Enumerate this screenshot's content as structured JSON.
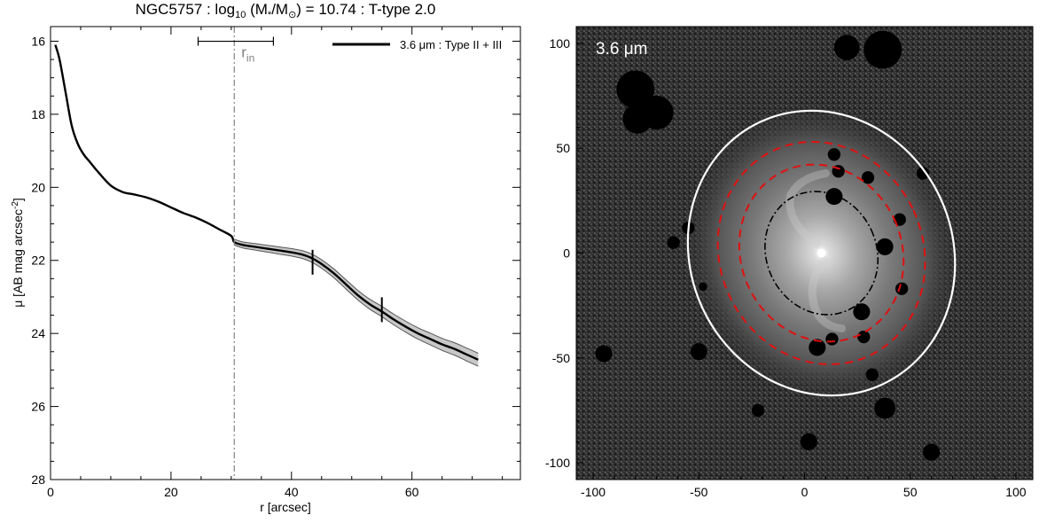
{
  "chart_data": [
    {
      "type": "line",
      "title_parts": {
        "galaxy": "NGC5757",
        "log_prefix": " : log",
        "log_sub": "10",
        "mass_open": " (M",
        "mass_sub": "*",
        "over": "/M",
        "sun": "⊙",
        "mass_value": ") = 10.74",
        "ttype": " : T-type 2.0"
      },
      "xlabel": "r [arcsec]",
      "ylabel_main": "μ [AB mag arcsec",
      "ylabel_sup": "-2",
      "ylabel_close": "]",
      "xlim": [
        0,
        78
      ],
      "ylim": [
        28,
        15.6
      ],
      "y_inverted": true,
      "xticks": [
        0,
        20,
        40,
        60
      ],
      "xtick_labels": [
        "0",
        "20",
        "40",
        "60"
      ],
      "yticks": [
        16,
        18,
        20,
        22,
        24,
        26,
        28
      ],
      "ytick_labels": [
        "16",
        "18",
        "20",
        "22",
        "24",
        "26",
        "28"
      ],
      "legend": {
        "position": "top-right",
        "label": "3.6 μm : Type II + III"
      },
      "series": [
        {
          "name": "3.6 μm : Type II + III",
          "x": [
            0.8,
            1.5,
            2.5,
            3.5,
            4.5,
            5.5,
            6.5,
            8,
            10,
            12,
            14,
            16,
            18,
            20,
            22,
            24,
            26,
            28,
            30,
            30.5,
            32,
            34,
            36,
            38,
            40,
            42,
            43.5,
            45,
            47,
            49,
            51,
            53,
            55,
            57,
            59,
            61,
            63,
            65,
            67,
            69,
            71
          ],
          "y": [
            16.1,
            16.5,
            17.4,
            18.3,
            18.8,
            19.1,
            19.3,
            19.6,
            19.95,
            20.13,
            20.2,
            20.28,
            20.4,
            20.55,
            20.7,
            20.82,
            20.97,
            21.15,
            21.33,
            21.5,
            21.58,
            21.63,
            21.68,
            21.73,
            21.78,
            21.85,
            21.95,
            22.1,
            22.35,
            22.65,
            22.95,
            23.2,
            23.4,
            23.62,
            23.82,
            24.0,
            24.15,
            24.3,
            24.42,
            24.57,
            24.72
          ]
        }
      ],
      "uncertainty_band_x_range": [
        30.5,
        71
      ],
      "uncertainty_band_half_width_mag": [
        0.08,
        0.18
      ],
      "annotations": {
        "r_in_label": "r",
        "r_in_sub": "in",
        "r_in_value": 30.5,
        "r_in_errorbar": [
          24.5,
          37
        ],
        "r_in_errorbar_y": 16.05,
        "break_markers": [
          {
            "x": 43.5,
            "y": 22.05
          },
          {
            "x": 55,
            "y": 23.35
          }
        ]
      }
    },
    {
      "type": "image",
      "label": "3.6 μm",
      "xlim": [
        -108,
        108
      ],
      "ylim": [
        -108,
        108
      ],
      "xticks": [
        -100,
        -50,
        0,
        50,
        100
      ],
      "xtick_labels": [
        "-100",
        "-50",
        "0",
        "50",
        "100"
      ],
      "yticks": [
        -100,
        -50,
        0,
        50,
        100
      ],
      "ytick_labels": [
        "-100",
        "-50",
        "0",
        "50",
        "100"
      ],
      "colors": {
        "background": "#2d2d2d",
        "outer_ellipse": "#ffffff",
        "dashed_ellipses": "#e01010",
        "inner_ellipse": "#000000",
        "masks": "#000000"
      },
      "ellipses": [
        {
          "style": "solid-white",
          "cx": 8,
          "cy": 0,
          "rx": 62,
          "ry": 69,
          "angle_deg": -25
        },
        {
          "style": "dashed-red",
          "cx": 8,
          "cy": 0,
          "rx": 48,
          "ry": 54,
          "angle_deg": -25
        },
        {
          "style": "dashed-red",
          "cx": 8,
          "cy": 0,
          "rx": 38,
          "ry": 43,
          "angle_deg": -25
        },
        {
          "style": "dashdot-black",
          "cx": 8,
          "cy": 0,
          "rx": 26,
          "ry": 30,
          "angle_deg": -25
        }
      ],
      "masked_sources": [
        {
          "x": -80,
          "y": 78,
          "r": 9
        },
        {
          "x": -70,
          "y": 67,
          "r": 8
        },
        {
          "x": -79,
          "y": 64,
          "r": 7
        },
        {
          "x": 37,
          "y": 97,
          "r": 9
        },
        {
          "x": 20,
          "y": 98,
          "r": 6
        },
        {
          "x": 14,
          "y": 47,
          "r": 3
        },
        {
          "x": 16,
          "y": 39,
          "r": 3
        },
        {
          "x": 14,
          "y": 27,
          "r": 4
        },
        {
          "x": 30,
          "y": 36,
          "r": 3
        },
        {
          "x": 38,
          "y": 3,
          "r": 4
        },
        {
          "x": 45,
          "y": 16,
          "r": 3
        },
        {
          "x": 27,
          "y": -28,
          "r": 4
        },
        {
          "x": 28,
          "y": -40,
          "r": 3
        },
        {
          "x": 6,
          "y": -45,
          "r": 4
        },
        {
          "x": 13,
          "y": -41,
          "r": 3
        },
        {
          "x": -55,
          "y": 12,
          "r": 3
        },
        {
          "x": -62,
          "y": 5,
          "r": 3
        },
        {
          "x": -50,
          "y": -47,
          "r": 4
        },
        {
          "x": 38,
          "y": -74,
          "r": 5
        },
        {
          "x": -95,
          "y": -48,
          "r": 4
        },
        {
          "x": 2,
          "y": -90,
          "r": 4
        },
        {
          "x": 46,
          "y": -17,
          "r": 3
        },
        {
          "x": 56,
          "y": 38,
          "r": 3
        },
        {
          "x": -48,
          "y": -16,
          "r": 2
        },
        {
          "x": 32,
          "y": -58,
          "r": 3
        },
        {
          "x": -22,
          "y": -75,
          "r": 3
        },
        {
          "x": 60,
          "y": -95,
          "r": 4
        }
      ]
    }
  ]
}
